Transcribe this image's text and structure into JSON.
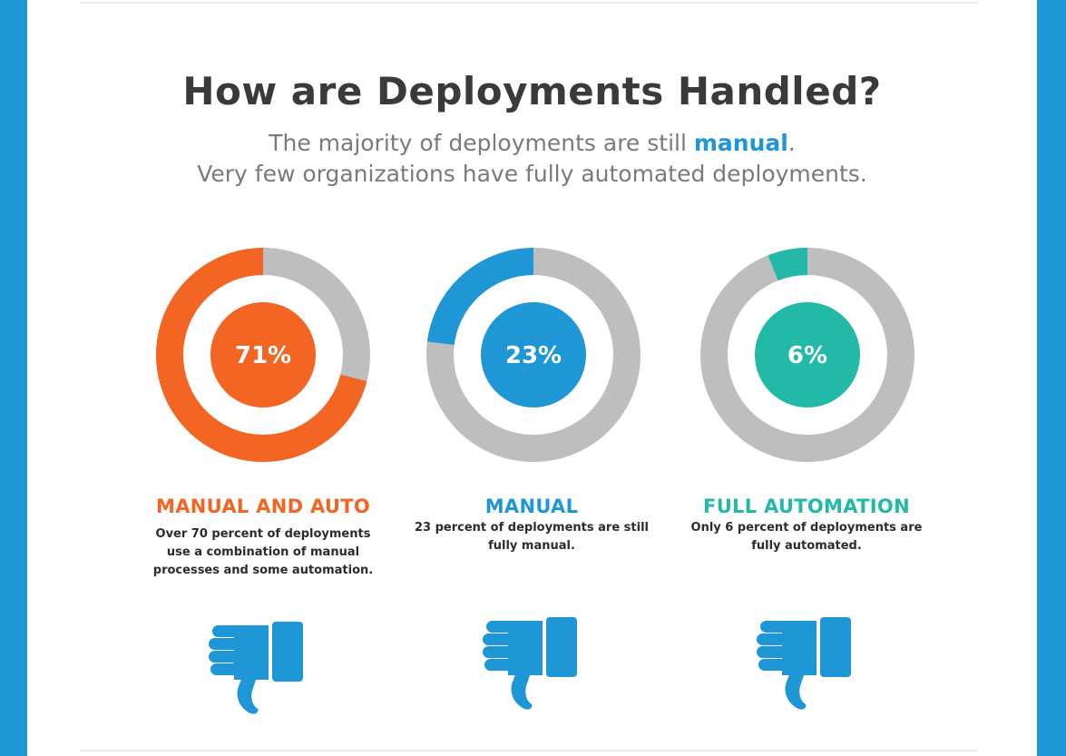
{
  "colors": {
    "frame": "#1f96d6",
    "track": "#bcbec0",
    "orange": "#f26522",
    "blue": "#1f96d6",
    "teal": "#22b9a6",
    "text": "#3a3a3a",
    "subtext": "#7a7a7a"
  },
  "header": {
    "title": "How are Deployments Handled?",
    "subtitle_line1_before": "The majority of deployments are still ",
    "subtitle_line1_accent": "manual",
    "subtitle_line1_after": ".",
    "subtitle_line2": "Very few organizations have fully automated deployments."
  },
  "chart_data": {
    "type": "pie",
    "variant": "donut",
    "title": "How are Deployments Handled?",
    "series": [
      {
        "name": "MANUAL AND AUTO",
        "value": 71,
        "label": "71%",
        "description": "Over 70 percent of deployments use a combination of manual processes and some automation.",
        "color": "#f26522",
        "icon": "thumbs-down-icon"
      },
      {
        "name": "MANUAL",
        "value": 23,
        "label": "23%",
        "description": "23 percent of deployments are still fully manual.",
        "color": "#1f96d6",
        "icon": "thumbs-down-icon"
      },
      {
        "name": "FULL AUTOMATION",
        "value": 6,
        "label": "6%",
        "description": "Only 6 percent of deployments are fully automated.",
        "color": "#22b9a6",
        "icon": "thumbs-down-icon"
      }
    ]
  }
}
